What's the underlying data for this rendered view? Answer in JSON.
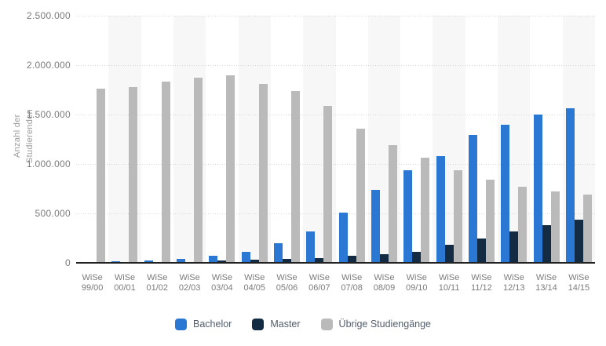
{
  "chart_data": {
    "type": "bar",
    "title": "",
    "ylabel": "Anzahl der Studierenden",
    "xlabel": "",
    "ylim": [
      0,
      2500000
    ],
    "y_tick_interval": 500000,
    "y_tick_labels": [
      "0",
      "500.000",
      "1.000.000",
      "1.500.000",
      "2.000.000",
      "2.500.000"
    ],
    "grid": "horizontal-dotted",
    "plot_bands": "alternating columns white / light gray",
    "legend_position": "bottom-center",
    "categories": [
      "WiSe 99/00",
      "WiSe 00/01",
      "WiSe 01/02",
      "WiSe 02/03",
      "WiSe 03/04",
      "WiSe 04/05",
      "WiSe 05/06",
      "WiSe 06/07",
      "WiSe 07/08",
      "WiSe 08/09",
      "WiSe 09/10",
      "WiSe 10/11",
      "WiSe 11/12",
      "WiSe 12/13",
      "WiSe 13/14",
      "WiSe 14/15"
    ],
    "series": [
      {
        "name": "Bachelor",
        "color": "#2b78d4",
        "values": [
          8000,
          14000,
          25000,
          40000,
          75000,
          110000,
          200000,
          320000,
          510000,
          740000,
          935000,
          1080000,
          1290000,
          1400000,
          1500000,
          1560000
        ]
      },
      {
        "name": "Master",
        "color": "#132c44",
        "values": [
          3000,
          5000,
          10000,
          12000,
          20000,
          30000,
          40000,
          50000,
          70000,
          90000,
          110000,
          185000,
          250000,
          320000,
          380000,
          440000
        ]
      },
      {
        "name": "Übrige Studiengänge",
        "color": "#bbbaba",
        "values": [
          1760000,
          1780000,
          1830000,
          1870000,
          1900000,
          1810000,
          1740000,
          1590000,
          1360000,
          1190000,
          1060000,
          940000,
          840000,
          770000,
          720000,
          690000
        ]
      }
    ]
  },
  "colors": {
    "background": "#ffffff",
    "band": "#f7f7f7",
    "gridline": "#d7d7d7",
    "axis_line": "#222222",
    "tick_text": "#7b7b7b",
    "axis_title_text": "#9a9a9a",
    "legend_text": "#525e6b"
  }
}
